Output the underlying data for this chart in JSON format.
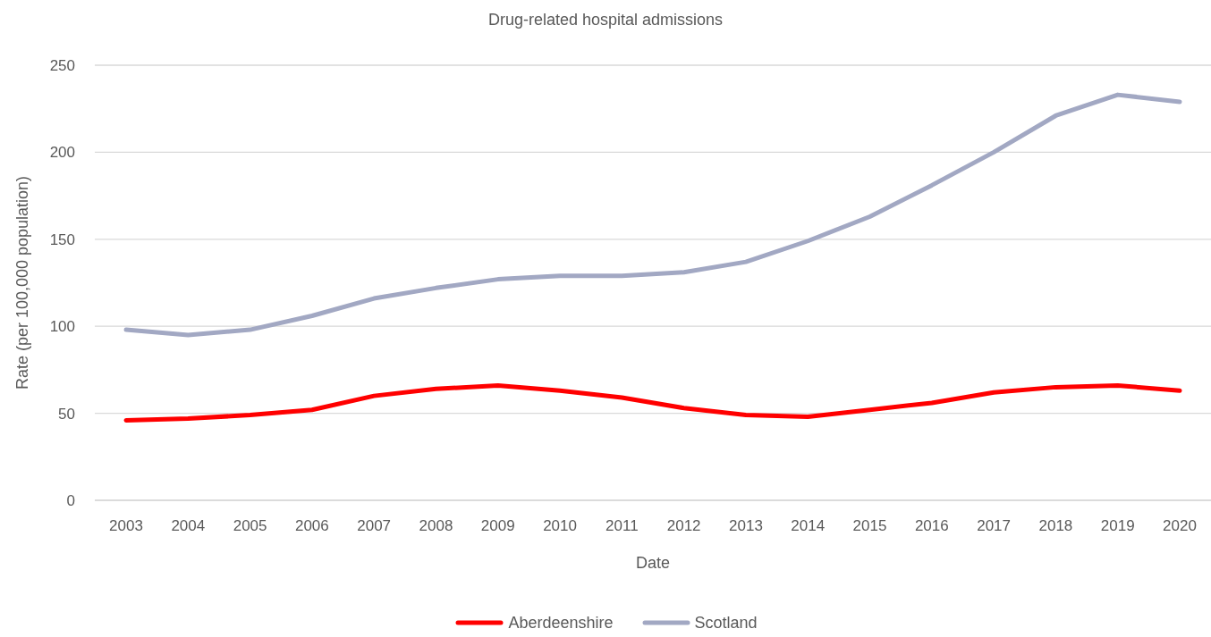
{
  "chart_data": {
    "type": "line",
    "title": "Drug-related hospital admissions",
    "xlabel": "Date",
    "ylabel": "Rate (per 100,000 population)",
    "categories": [
      "2003",
      "2004",
      "2005",
      "2006",
      "2007",
      "2008",
      "2009",
      "2010",
      "2011",
      "2012",
      "2013",
      "2014",
      "2015",
      "2016",
      "2017",
      "2018",
      "2019",
      "2020"
    ],
    "series": [
      {
        "name": "Aberdeenshire",
        "color": "#ff0000",
        "values": [
          46,
          47,
          49,
          52,
          60,
          64,
          66,
          63,
          59,
          53,
          49,
          48,
          52,
          56,
          62,
          65,
          66,
          63
        ]
      },
      {
        "name": "Scotland",
        "color": "#a2a8c3",
        "values": [
          98,
          95,
          98,
          106,
          116,
          122,
          127,
          129,
          129,
          131,
          137,
          149,
          163,
          181,
          200,
          221,
          233,
          229
        ]
      }
    ],
    "ylim": [
      0,
      250
    ],
    "yticks": [
      0,
      50,
      100,
      150,
      200,
      250
    ],
    "grid": "y",
    "legend": "bottom",
    "marker": "none",
    "line_style": "solid"
  }
}
